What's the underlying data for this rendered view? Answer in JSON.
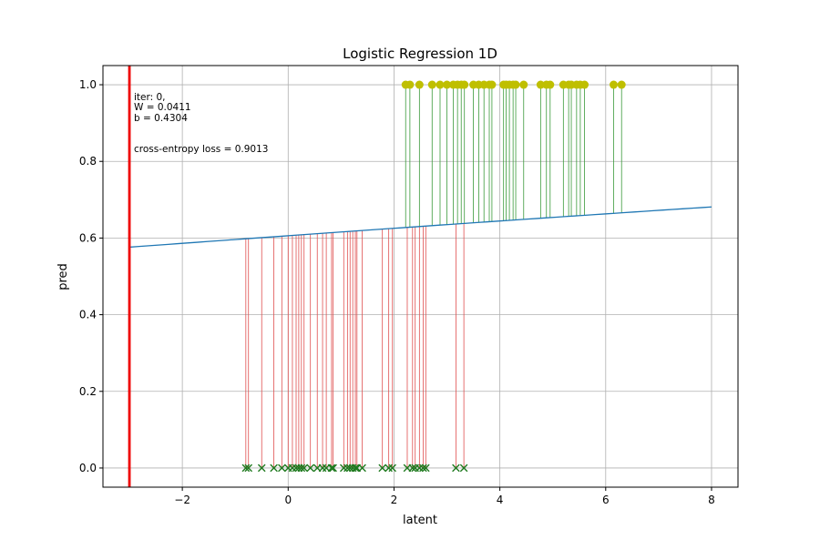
{
  "chart_data": {
    "type": "scatter",
    "title": "Logistic Regression 1D",
    "xlabel": "latent",
    "ylabel": "pred",
    "xlim": [
      -3.5,
      8.5
    ],
    "ylim": [
      -0.05,
      1.05
    ],
    "xticks": [
      -2,
      0,
      2,
      4,
      6,
      8
    ],
    "yticks": [
      0.0,
      0.2,
      0.4,
      0.6,
      0.8,
      1.0
    ],
    "xtick_labels": [
      "−2",
      "0",
      "2",
      "4",
      "6",
      "8"
    ],
    "ytick_labels": [
      "0.0",
      "0.2",
      "0.4",
      "0.6",
      "0.8",
      "1.0"
    ],
    "grid": true,
    "annotation_lines": [
      "iter: 0,",
      "W = 0.0411",
      "b = 0.4304"
    ],
    "loss_text": "cross-entropy loss = 0.9013",
    "threshold_x": -3.0,
    "model": {
      "W": 0.0411,
      "b": 0.4304,
      "x_start": -3.0,
      "x_end": 8.0
    },
    "class0_x": [
      -0.8,
      -0.75,
      -0.5,
      -0.27,
      -0.12,
      0.0,
      0.08,
      0.15,
      0.2,
      0.25,
      0.3,
      0.42,
      0.55,
      0.65,
      0.72,
      0.82,
      0.85,
      1.05,
      1.12,
      1.17,
      1.22,
      1.27,
      1.3,
      1.4,
      1.78,
      1.9,
      1.97,
      2.25,
      2.35,
      2.4,
      2.48,
      2.55,
      2.6,
      3.17,
      3.32
    ],
    "class1_x": [
      2.22,
      2.3,
      2.48,
      2.72,
      2.87,
      3.0,
      3.12,
      3.2,
      3.27,
      3.33,
      3.5,
      3.6,
      3.7,
      3.8,
      3.85,
      4.07,
      4.12,
      4.18,
      4.25,
      4.3,
      4.45,
      4.77,
      4.88,
      4.95,
      5.2,
      5.3,
      5.35,
      5.45,
      5.52,
      5.6,
      6.15,
      6.3
    ],
    "colors": {
      "class0_marker": "#1f7a1f",
      "class1_marker": "#bfbf00",
      "class0_residual": "#e05050",
      "class1_residual": "#3a9a3a",
      "model_line": "#1f77b4",
      "threshold": "#ee0000",
      "grid": "#b0b0b0"
    }
  }
}
